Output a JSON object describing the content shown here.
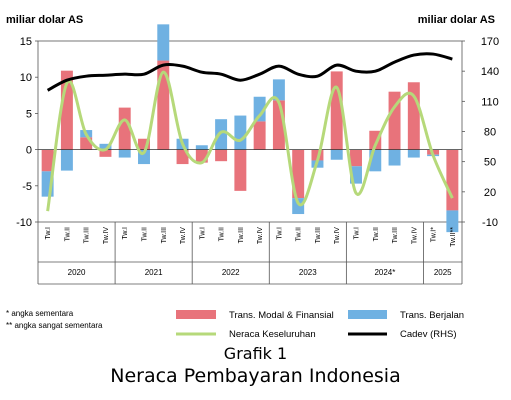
{
  "colors": {
    "modal": "#e8737b",
    "berjalan": "#6fb1e2",
    "neraca": "#b6d97a",
    "cadev": "#000000"
  },
  "caption": {
    "line1": "Grafik 1",
    "line2": "Neraca Pembayaran Indonesia"
  },
  "chart_data": {
    "type": "bar",
    "ylabel_left": "miliar dolar AS",
    "ylabel_right": "miliar dolar AS",
    "ylim_left": [
      -10,
      15
    ],
    "yticks_left": [
      "15",
      "10",
      "5",
      "0",
      "-5",
      "-10"
    ],
    "ylim_right": [
      -10,
      170
    ],
    "yticks_right": [
      "170",
      "140",
      "110",
      "80",
      "50",
      "20",
      "-10"
    ],
    "categories": [
      "Tw.I",
      "Tw.II",
      "Tw.III",
      "Tw.IV",
      "Tw.I",
      "Tw.II",
      "Tw.III",
      "Tw.IV",
      "Tw.I",
      "Tw.II",
      "Tw.III",
      "Tw.IV",
      "Tw.I",
      "Tw.II",
      "Tw.III",
      "Tw.IV",
      "Tw.I",
      "Tw.II",
      "Tw.III",
      "Tw.IV",
      "Tw.I*",
      "Tw.II**"
    ],
    "years": [
      {
        "label": "2020",
        "count": 4
      },
      {
        "label": "2021",
        "count": 4
      },
      {
        "label": "2022",
        "count": 4
      },
      {
        "label": "2023",
        "count": 4
      },
      {
        "label": "2024*",
        "count": 4
      },
      {
        "label": "2025",
        "count": 2
      }
    ],
    "series": [
      {
        "name": "Trans. Modal & Finansial",
        "kind": "bar",
        "axis": "left",
        "values": [
          -3.0,
          10.9,
          1.7,
          -1.0,
          5.8,
          1.5,
          12.3,
          -2.0,
          -1.8,
          -1.6,
          -5.7,
          3.9,
          6.8,
          -6.7,
          -1.5,
          10.8,
          -2.3,
          2.6,
          8.0,
          9.3,
          -0.7,
          -8.4
        ]
      },
      {
        "name": "Trans. Berjalan",
        "kind": "bar",
        "axis": "left",
        "values": [
          -3.5,
          -2.9,
          1.0,
          0.8,
          -1.1,
          -2.0,
          5.0,
          1.5,
          0.6,
          4.2,
          4.7,
          3.4,
          2.9,
          -2.2,
          -1.0,
          -1.4,
          -2.4,
          -3.0,
          -2.2,
          -1.1,
          -0.2,
          -3.0
        ]
      },
      {
        "name": "Neraca Keseluruhan",
        "kind": "line",
        "axis": "left",
        "values": [
          -8.5,
          9.2,
          2.1,
          0.0,
          4.1,
          -0.4,
          10.7,
          0.8,
          -1.8,
          2.4,
          1.3,
          4.7,
          6.5,
          -7.4,
          -1.5,
          8.6,
          -6.0,
          0.6,
          5.9,
          7.4,
          -0.8,
          -6.7
        ]
      },
      {
        "name": "Cadev (RHS)",
        "kind": "line",
        "axis": "right",
        "values": [
          121,
          131,
          135,
          136,
          137,
          137,
          146,
          145,
          139,
          137,
          131,
          137,
          145,
          137,
          135,
          146,
          140,
          140,
          149,
          156,
          157,
          152
        ]
      }
    ]
  },
  "notes": {
    "line1": "* angka sementara",
    "line2": "** angka sangat sementara"
  }
}
